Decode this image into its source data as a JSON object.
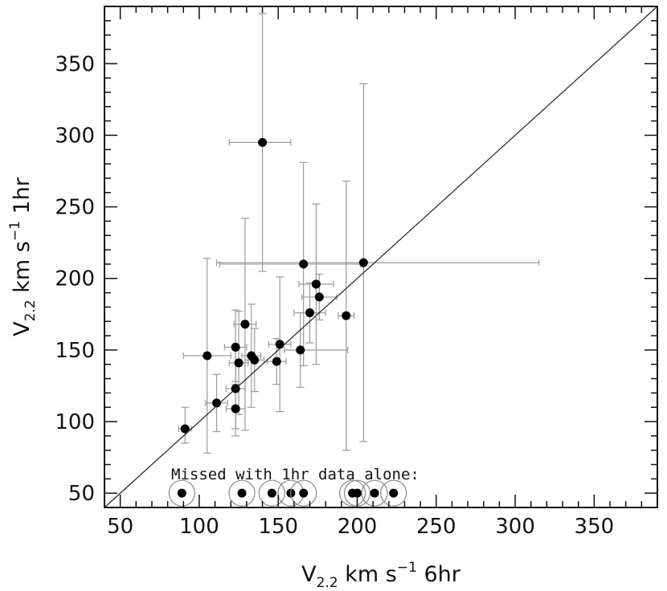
{
  "chart_data": {
    "type": "scatter",
    "xlabel": {
      "base": "V",
      "sub": "2.2",
      "units": " km s",
      "sup": "−1",
      "suffix": " 6hr"
    },
    "ylabel": {
      "base": "V",
      "sub": "2.2",
      "units": " km s",
      "sup": "−1",
      "suffix": " 1hr"
    },
    "xlim": [
      40,
      390
    ],
    "ylim": [
      40,
      390
    ],
    "xticks": [
      50,
      100,
      150,
      200,
      250,
      300,
      350
    ],
    "yticks": [
      50,
      100,
      150,
      200,
      250,
      300,
      350
    ],
    "reference_line": {
      "label": "",
      "x": [
        40,
        390
      ],
      "y": [
        40,
        390
      ]
    },
    "annotation": "Missed with 1hr data alone:",
    "points": [
      {
        "x": 91,
        "y": 95,
        "xerr": [
          4,
          4
        ],
        "yerr": [
          10,
          15
        ]
      },
      {
        "x": 105,
        "y": 146,
        "xerr": [
          15,
          15
        ],
        "yerr": [
          68,
          68
        ]
      },
      {
        "x": 111,
        "y": 113,
        "xerr": [
          7,
          7
        ],
        "yerr": [
          20,
          20
        ]
      },
      {
        "x": 123,
        "y": 109,
        "xerr": [
          6,
          6
        ],
        "yerr": [
          19,
          19
        ]
      },
      {
        "x": 123,
        "y": 123,
        "xerr": [
          6,
          6
        ],
        "yerr": [
          28,
          28
        ]
      },
      {
        "x": 123,
        "y": 152,
        "xerr": [
          7,
          7
        ],
        "yerr": [
          26,
          26
        ]
      },
      {
        "x": 125,
        "y": 141,
        "xerr": [
          6,
          6
        ],
        "yerr": [
          36,
          36
        ]
      },
      {
        "x": 129,
        "y": 168,
        "xerr": [
          7,
          7
        ],
        "yerr": [
          74,
          74
        ]
      },
      {
        "x": 133,
        "y": 146,
        "xerr": [
          6,
          6
        ],
        "yerr": [
          36,
          36
        ]
      },
      {
        "x": 135,
        "y": 143,
        "xerr": [
          6,
          6
        ],
        "yerr": [
          22,
          22
        ]
      },
      {
        "x": 140,
        "y": 295,
        "xerr": [
          21,
          18
        ],
        "yerr": [
          90,
          90
        ]
      },
      {
        "x": 149,
        "y": 142,
        "xerr": [
          6,
          6
        ],
        "yerr": [
          16,
          16
        ]
      },
      {
        "x": 151,
        "y": 154,
        "xerr": [
          7,
          7
        ],
        "yerr": [
          47,
          47
        ]
      },
      {
        "x": 164,
        "y": 150,
        "xerr": [
          10,
          30
        ],
        "yerr": [
          26,
          26
        ]
      },
      {
        "x": 166,
        "y": 210,
        "xerr": [
          53,
          36
        ],
        "yerr": [
          71,
          71
        ]
      },
      {
        "x": 170,
        "y": 176,
        "xerr": [
          10,
          10
        ],
        "yerr": [
          21,
          21
        ]
      },
      {
        "x": 174,
        "y": 196,
        "xerr": [
          11,
          11
        ],
        "yerr": [
          56,
          56
        ]
      },
      {
        "x": 176,
        "y": 187,
        "xerr": [
          11,
          11
        ],
        "yerr": [
          16,
          16
        ]
      },
      {
        "x": 193,
        "y": 174,
        "xerr": [
          5,
          5
        ],
        "yerr": [
          94,
          94
        ]
      },
      {
        "x": 204,
        "y": 211,
        "xerr": [
          93,
          111
        ],
        "yerr": [
          125,
          125
        ]
      }
    ],
    "missed_points": [
      {
        "x": 89,
        "y": 50
      },
      {
        "x": 127,
        "y": 50
      },
      {
        "x": 146,
        "y": 50
      },
      {
        "x": 158,
        "y": 50
      },
      {
        "x": 166,
        "y": 50
      },
      {
        "x": 197,
        "y": 50
      },
      {
        "x": 200,
        "y": 50
      },
      {
        "x": 211,
        "y": 50
      },
      {
        "x": 223,
        "y": 50
      }
    ]
  }
}
